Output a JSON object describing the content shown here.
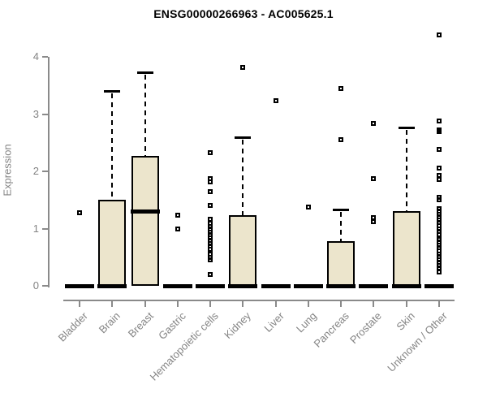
{
  "page": {
    "title": "ENSG00000266963 - AC005625.1"
  },
  "chart_data": {
    "type": "boxplot",
    "title": "ENSG00000266963 - AC005625.1",
    "xlabel": "",
    "ylabel": "Expression",
    "ylim": [
      0,
      4.45
    ],
    "yticks": [
      0,
      1,
      2,
      3,
      4
    ],
    "grid": false,
    "legend": "none",
    "categories": [
      "Bladder",
      "Brain",
      "Breast",
      "Gastric",
      "Hematopoietic cells",
      "Kidney",
      "Liver",
      "Lung",
      "Pancreas",
      "Prostate",
      "Skin",
      "Unknown / Other"
    ],
    "series": [
      {
        "name": "Bladder",
        "median": 0,
        "q1": 0,
        "q3": 0,
        "whisker_low": 0,
        "whisker_high": 0,
        "outliers": [
          1.27
        ]
      },
      {
        "name": "Brain",
        "median": 0,
        "q1": 0,
        "q3": 1.5,
        "whisker_low": 0,
        "whisker_high": 3.4,
        "outliers": []
      },
      {
        "name": "Breast",
        "median": 1.3,
        "q1": 0,
        "q3": 2.27,
        "whisker_low": 0,
        "whisker_high": 3.73,
        "outliers": []
      },
      {
        "name": "Gastric",
        "median": 0,
        "q1": 0,
        "q3": 0,
        "whisker_low": 0,
        "whisker_high": 0,
        "outliers": [
          1.24,
          0.99
        ]
      },
      {
        "name": "Hematopoietic cells",
        "median": 0,
        "q1": 0,
        "q3": 0,
        "whisker_low": 0,
        "whisker_high": 0,
        "outliers": [
          2.33,
          1.87,
          1.82,
          1.65,
          1.4,
          1.16,
          1.09,
          1.04,
          0.99,
          0.94,
          0.89,
          0.84,
          0.79,
          0.74,
          0.69,
          0.64,
          0.55,
          0.5,
          0.45,
          0.2
        ]
      },
      {
        "name": "Kidney",
        "median": 0,
        "q1": 0,
        "q3": 1.24,
        "whisker_low": 0,
        "whisker_high": 2.6,
        "outliers": [
          3.82
        ]
      },
      {
        "name": "Liver",
        "median": 0,
        "q1": 0,
        "q3": 0,
        "whisker_low": 0,
        "whisker_high": 0,
        "outliers": [
          3.23
        ]
      },
      {
        "name": "Lung",
        "median": 0,
        "q1": 0,
        "q3": 0,
        "whisker_low": 0,
        "whisker_high": 0,
        "outliers": [
          1.38
        ]
      },
      {
        "name": "Pancreas",
        "median": 0,
        "q1": 0,
        "q3": 0.78,
        "whisker_low": 0,
        "whisker_high": 1.33,
        "outliers": [
          3.44,
          2.55
        ]
      },
      {
        "name": "Prostate",
        "median": 0,
        "q1": 0,
        "q3": 0,
        "whisker_low": 0,
        "whisker_high": 0,
        "outliers": [
          2.84,
          1.87,
          1.19,
          1.12
        ]
      },
      {
        "name": "Skin",
        "median": 0,
        "q1": 0,
        "q3": 1.3,
        "whisker_low": 0,
        "whisker_high": 2.77,
        "outliers": []
      },
      {
        "name": "Unknown / Other",
        "median": 0,
        "q1": 0,
        "q3": 0,
        "whisker_low": 0,
        "whisker_high": 0,
        "outliers": [
          4.38,
          2.88,
          2.73,
          2.69,
          2.39,
          2.06,
          1.93,
          1.86,
          1.54,
          1.5,
          1.35,
          1.3,
          1.25,
          1.2,
          1.15,
          1.1,
          1.05,
          1.0,
          0.95,
          0.9,
          0.81,
          0.76,
          0.71,
          0.66,
          0.61,
          0.56,
          0.51,
          0.46,
          0.41,
          0.36,
          0.31,
          0.24
        ]
      }
    ],
    "colors": {
      "box_fill": "#ece5cc",
      "box_border": "#000000",
      "median": "#000000",
      "whisker": "#000000",
      "axis": "#8a8a8a",
      "tick_label": "#848484",
      "title": "#000000"
    }
  }
}
